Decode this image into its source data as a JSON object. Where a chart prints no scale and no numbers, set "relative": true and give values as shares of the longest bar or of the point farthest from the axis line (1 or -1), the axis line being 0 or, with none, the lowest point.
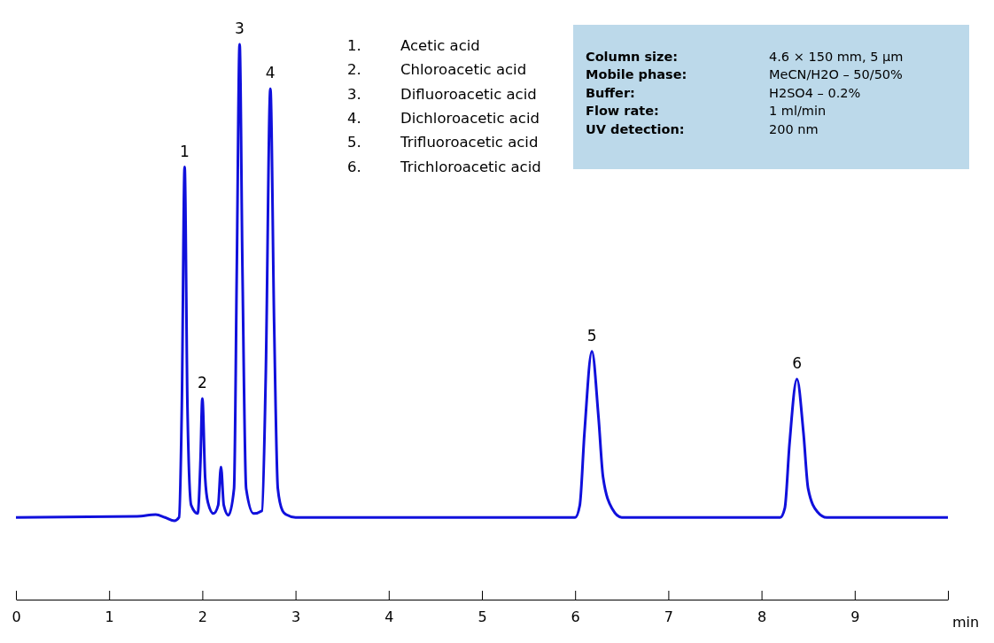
{
  "chart_data": {
    "type": "line",
    "relative": true,
    "xlabel": "min",
    "xlim": [
      0,
      10
    ],
    "xticks": [
      0,
      1,
      2,
      3,
      4,
      5,
      6,
      7,
      8,
      9,
      {
        "value": 10,
        "label": null
      }
    ],
    "grid": false,
    "marker": "none",
    "line_style": "solid",
    "x": [
      0,
      1.3,
      1.5,
      1.6,
      1.7,
      1.75,
      1.78,
      1.81,
      1.84,
      1.88,
      1.95,
      1.98,
      2.0,
      2.03,
      2.06,
      2.12,
      2.17,
      2.2,
      2.23,
      2.28,
      2.34,
      2.37,
      2.4,
      2.43,
      2.47,
      2.55,
      2.64,
      2.68,
      2.73,
      2.77,
      2.81,
      2.86,
      2.9,
      3.0,
      6.0,
      6.05,
      6.1,
      6.18,
      6.25,
      6.3,
      6.4,
      6.5,
      8.2,
      8.25,
      8.3,
      8.38,
      8.45,
      8.5,
      8.6,
      8.7,
      10
    ],
    "series": [
      {
        "color": "#1010dc",
        "values": [
          0.148,
          0.15,
          0.153,
          0.148,
          0.142,
          0.148,
          0.35,
          0.779,
          0.35,
          0.17,
          0.155,
          0.25,
          0.362,
          0.22,
          0.175,
          0.155,
          0.17,
          0.239,
          0.17,
          0.152,
          0.2,
          0.6,
          1,
          0.6,
          0.2,
          0.155,
          0.16,
          0.4,
          0.92,
          0.5,
          0.2,
          0.16,
          0.153,
          0.148,
          0.148,
          0.17,
          0.3,
          0.447,
          0.33,
          0.22,
          0.163,
          0.148,
          0.148,
          0.165,
          0.28,
          0.397,
          0.3,
          0.2,
          0.158,
          0.148,
          0.148
        ]
      }
    ],
    "annotations": [
      {
        "text": "1",
        "x": 1.81,
        "y": 0.779
      },
      {
        "text": "2",
        "x": 2.0,
        "y": 0.362
      },
      {
        "text": "3",
        "x": 2.4,
        "y": 1
      },
      {
        "text": "4",
        "x": 2.73,
        "y": 0.92
      },
      {
        "text": "5",
        "x": 6.18,
        "y": 0.447
      },
      {
        "text": "6",
        "x": 8.38,
        "y": 0.397
      },
      "1.",
      "Acetic acid",
      "2.",
      "Chloroacetic acid",
      "3.",
      "Difluoroacetic acid",
      "4.",
      "Dichloroacetic acid",
      "5.",
      "Trifluoroacetic acid",
      "6.",
      "Trichloroacetic acid",
      "Column size:",
      "4.6 × 150 mm, 5 µm",
      "Mobile phase:",
      "MeCN/H2O – 50/50%",
      "Buffer:",
      "H2SO4 – 0.2%",
      "Flow rate:",
      "1 ml/min",
      "UV detection:",
      "200 nm"
    ]
  }
}
